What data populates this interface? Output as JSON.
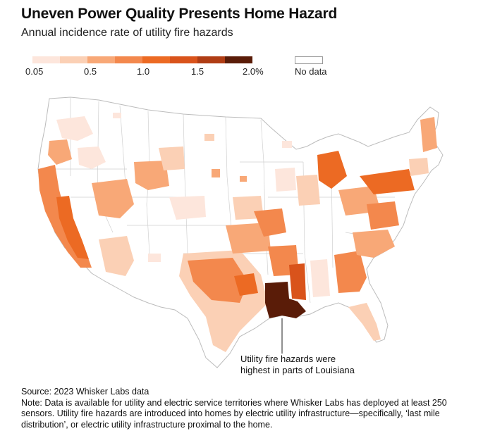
{
  "title": "Uneven Power Quality Presents Home Hazard",
  "subtitle": "Annual incidence rate of utility fire hazards",
  "legend": {
    "labels": [
      "0.05",
      "0.5",
      "1.0",
      "1.5",
      "2.0%"
    ],
    "nodata_label": "No data",
    "colors": [
      "#fde6dc",
      "#fbd0b5",
      "#f8a877",
      "#f3884d",
      "#ec6a23",
      "#d9531b",
      "#b03d14",
      "#5a1c08"
    ]
  },
  "annotation": {
    "line1": "Utility fire hazards were",
    "line2": "highest in parts of Louisiana"
  },
  "footer": {
    "source": "Source: 2023 Whisker Labs data",
    "note": "Note: Data is available for utility and electric service territories where Whisker Labs has deployed at least 250 sensors. Utility fire hazards are introduced into homes by electric utility infrastructure—specifically, ‘last mile distribution’, or electric utility infrastructure proximal to the home."
  }
}
